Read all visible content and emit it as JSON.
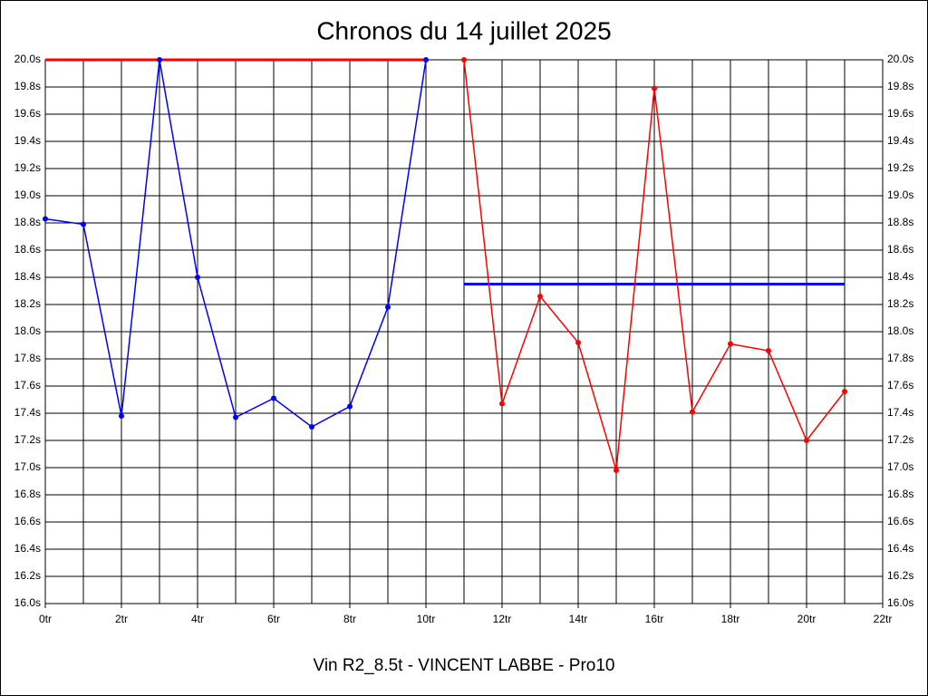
{
  "chart_data": {
    "type": "line",
    "title": "Chronos du 14 juillet 2025",
    "subtitle": "Vin R2_8.5t - VINCENT LABBE - Pro10",
    "series": [
      {
        "color": "#0000ff",
        "x": [
          0,
          1,
          2,
          3,
          4,
          5,
          6,
          7,
          8,
          9,
          10
        ],
        "values": [
          18.83,
          18.79,
          17.38,
          20.0,
          18.4,
          17.37,
          17.51,
          17.3,
          17.45,
          18.18,
          20.0
        ]
      },
      {
        "color": "#ff0000",
        "x": [
          11,
          12,
          13,
          14,
          15,
          16,
          17,
          18,
          19,
          20,
          21
        ],
        "values": [
          20.0,
          17.47,
          18.26,
          17.92,
          16.98,
          19.79,
          17.41,
          17.91,
          17.86,
          17.2,
          17.56
        ]
      }
    ],
    "reference_lines": [
      {
        "color": "#ff0000",
        "y": 20.0,
        "x": [
          0,
          10
        ]
      },
      {
        "color": "#0000ff",
        "y": 18.35,
        "x": [
          11,
          21
        ]
      }
    ],
    "xlim": [
      0,
      22
    ],
    "xticks": [
      {
        "value": 0,
        "label": "0tr"
      },
      {
        "value": 2,
        "label": "2tr"
      },
      {
        "value": 4,
        "label": "4tr"
      },
      {
        "value": 6,
        "label": "6tr"
      },
      {
        "value": 8,
        "label": "8tr"
      },
      {
        "value": 10,
        "label": "10tr"
      },
      {
        "value": 12,
        "label": "12tr"
      },
      {
        "value": 14,
        "label": "14tr"
      },
      {
        "value": 16,
        "label": "16tr"
      },
      {
        "value": 18,
        "label": "18tr"
      },
      {
        "value": 20,
        "label": "20tr"
      },
      {
        "value": 22,
        "label": "22tr"
      }
    ],
    "xminorticks": [
      1,
      3,
      5,
      7,
      9,
      11,
      13,
      15,
      17,
      19,
      21
    ],
    "ylim": [
      16.0,
      20.0
    ],
    "yticks": [
      {
        "value": 16.0,
        "label": "16.0s"
      },
      {
        "value": 16.2,
        "label": "16.2s"
      },
      {
        "value": 16.4,
        "label": "16.4s"
      },
      {
        "value": 16.6,
        "label": "16.6s"
      },
      {
        "value": 16.8,
        "label": "16.8s"
      },
      {
        "value": 17.0,
        "label": "17.0s"
      },
      {
        "value": 17.2,
        "label": "17.2s"
      },
      {
        "value": 17.4,
        "label": "17.4s"
      },
      {
        "value": 17.6,
        "label": "17.6s"
      },
      {
        "value": 17.8,
        "label": "17.8s"
      },
      {
        "value": 18.0,
        "label": "18.0s"
      },
      {
        "value": 18.2,
        "label": "18.2s"
      },
      {
        "value": 18.4,
        "label": "18.4s"
      },
      {
        "value": 18.6,
        "label": "18.6s"
      },
      {
        "value": 18.8,
        "label": "18.8s"
      },
      {
        "value": 19.0,
        "label": "19.0s"
      },
      {
        "value": 19.2,
        "label": "19.2s"
      },
      {
        "value": 19.4,
        "label": "19.4s"
      },
      {
        "value": 19.6,
        "label": "19.6s"
      },
      {
        "value": 19.8,
        "label": "19.8s"
      },
      {
        "value": 20.0,
        "label": "20.0s"
      }
    ],
    "grid": true
  }
}
